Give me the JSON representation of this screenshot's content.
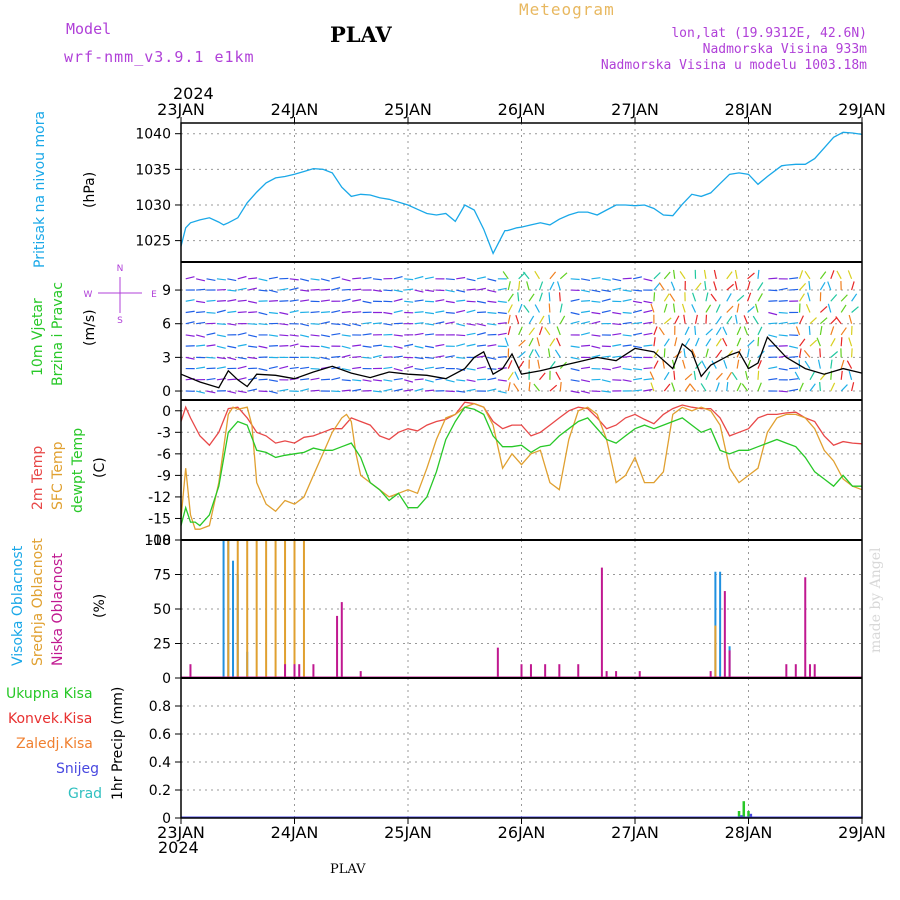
{
  "header": {
    "model_label": "Model",
    "model_name": "wrf-nmm_v3.9.1 e1km",
    "station": "PLAV",
    "title": "Meteogram",
    "lonlat": "lon,lat (19.9312E, 42.6N)",
    "elevation": "Nadmorska Visina 933m",
    "elevation_model": "Nadmorska Visina u modelu 1003.18m"
  },
  "footer": {
    "station": "PLAV",
    "credit": "made by Angel"
  },
  "year": "2024",
  "colors": {
    "pressure": "#1aa8e8",
    "temp2m": "#e84848",
    "sfc": "#e0a030",
    "dew": "#28c828",
    "high": "#2090e0",
    "mid": "#e0a030",
    "low": "#c01890",
    "total": "#28c828",
    "conv": "#e83030",
    "freezing": "#f08030",
    "snow": "#4848e0",
    "hail": "#30c0c0"
  },
  "chart_data": [
    {
      "type": "line",
      "panel": "pressure",
      "x_tick_labels": [
        "23JAN",
        "24JAN",
        "25JAN",
        "26JAN",
        "27JAN",
        "28JAN",
        "29JAN"
      ],
      "x_range_hours": [
        0,
        144
      ],
      "ylabel": [
        "Pritisak na nivou mora",
        "(hPa)"
      ],
      "ylim": [
        1022,
        1041.5
      ],
      "y_ticks": [
        1025,
        1030,
        1035,
        1040
      ],
      "grid": true,
      "series": [
        {
          "name": "Pritisak na nivou mora",
          "color": "#1aa8e8",
          "x": [
            0,
            1,
            2,
            4,
            6,
            8,
            9,
            10,
            12,
            14,
            16,
            18,
            20,
            22,
            24,
            26,
            28,
            30,
            32,
            34,
            36,
            38,
            40,
            42,
            44,
            46,
            48,
            50,
            52,
            54,
            56,
            58,
            60,
            62,
            64,
            66,
            68,
            68.5,
            69,
            70,
            71,
            72,
            74,
            76,
            78,
            80,
            82,
            84,
            86,
            88,
            90,
            92,
            94,
            96,
            98,
            100,
            102,
            104,
            106,
            108,
            110,
            112,
            114,
            116,
            118,
            120,
            122,
            124,
            126,
            127,
            128,
            130,
            132,
            134,
            136,
            138,
            140,
            142,
            144
          ],
          "y": [
            1024.2,
            1026.8,
            1027.5,
            1027.9,
            1028.2,
            1027.6,
            1027.2,
            1027.5,
            1028.2,
            1030.3,
            1031.8,
            1033.1,
            1033.8,
            1034.0,
            1034.3,
            1034.7,
            1035.1,
            1035.0,
            1034.5,
            1032.5,
            1031.2,
            1031.5,
            1031.4,
            1031.0,
            1030.8,
            1030.4,
            1030.0,
            1029.4,
            1028.8,
            1028.6,
            1028.8,
            1027.7,
            1030.0,
            1029.3,
            1026.6,
            1023.2,
            1025.8,
            1026.4,
            1026.4,
            1026.6,
            1026.8,
            1026.9,
            1027.2,
            1027.5,
            1027.2,
            1028.0,
            1028.6,
            1029.0,
            1029.0,
            1028.6,
            1029.3,
            1030.0,
            1030.0,
            1029.9,
            1030.0,
            1029.5,
            1028.6,
            1028.5,
            1030.1,
            1031.5,
            1031.2,
            1031.7,
            1033.0,
            1034.3,
            1034.5,
            1034.3,
            1032.9,
            1034.0,
            1035.0,
            1035.5,
            1035.6,
            1035.7,
            1035.7,
            1036.5,
            1038.0,
            1039.5,
            1040.2,
            1040.1,
            1039.9
          ]
        }
      ]
    },
    {
      "type": "line",
      "panel": "wind",
      "ylabel": [
        "10m Vjetar",
        "Brzina i Pravac",
        "(m/s)"
      ],
      "compass": {
        "n": "N",
        "e": "E",
        "s": "S",
        "w": "W"
      },
      "ylim": [
        -0.8,
        11.5
      ],
      "y_ticks": [
        0,
        3,
        6,
        9
      ],
      "grid": true,
      "series": [
        {
          "name": "10m Vjetar",
          "color": "#000000",
          "x": [
            0,
            4,
            8,
            10,
            12,
            14,
            16,
            20,
            24,
            28,
            32,
            36,
            40,
            44,
            48,
            52,
            56,
            60,
            62,
            64,
            66,
            68,
            70,
            72,
            76,
            80,
            84,
            88,
            92,
            96,
            100,
            104,
            106,
            108,
            110,
            112,
            116,
            118,
            120,
            122,
            124,
            128,
            132,
            136,
            140,
            144
          ],
          "y": [
            1.5,
            0.8,
            0.3,
            1.8,
            1.0,
            0.4,
            1.5,
            1.4,
            1.1,
            1.7,
            2.2,
            1.6,
            1.2,
            1.7,
            1.5,
            1.4,
            1.1,
            2.0,
            3.0,
            3.5,
            1.5,
            2.0,
            3.3,
            1.5,
            1.8,
            2.2,
            2.6,
            3.0,
            2.7,
            3.8,
            3.5,
            2.0,
            4.2,
            3.5,
            1.3,
            2.3,
            3.2,
            3.5,
            2.0,
            2.5,
            4.8,
            3.0,
            2.0,
            1.5,
            2.0,
            1.6
          ]
        }
      ],
      "wind_colors": [
        "#8820d8",
        "#2060e8",
        "#20b0e8",
        "#20c8a0",
        "#60d020",
        "#d8d020",
        "#f08020",
        "#e82828"
      ]
    },
    {
      "type": "line",
      "panel": "temperature",
      "ylabel": [
        "2m Temp",
        "SFC Temp",
        "dewpt Temp",
        "(C)"
      ],
      "ylim": [
        -18,
        1.5
      ],
      "y_ticks": [
        0,
        -3,
        -6,
        -9,
        -12,
        -15,
        -18
      ],
      "grid": true,
      "series": [
        {
          "name": "2m Temp",
          "color": "#e84848",
          "x": [
            0,
            1,
            2,
            4,
            6,
            8,
            10,
            12,
            14,
            16,
            18,
            20,
            22,
            24,
            26,
            28,
            30,
            32,
            34,
            36,
            38,
            40,
            42,
            44,
            46,
            48,
            50,
            52,
            54,
            56,
            58,
            60,
            62,
            64,
            66,
            68,
            70,
            72,
            74,
            76,
            78,
            80,
            82,
            84,
            86,
            88,
            90,
            92,
            94,
            96,
            98,
            100,
            102,
            104,
            106,
            108,
            110,
            112,
            114,
            116,
            118,
            120,
            122,
            124,
            126,
            128,
            130,
            132,
            134,
            136,
            138,
            140,
            142,
            144
          ],
          "y": [
            -1.5,
            0.5,
            -1.0,
            -3.5,
            -4.8,
            -3.0,
            0.3,
            0.5,
            -1.0,
            -3.0,
            -3.5,
            -4.5,
            -4.2,
            -4.5,
            -3.7,
            -3.5,
            -3.0,
            -2.5,
            -2.5,
            -1.0,
            -1.5,
            -2.0,
            -3.5,
            -4.0,
            -3.0,
            -2.5,
            -2.8,
            -2.0,
            -1.5,
            -1.2,
            -0.5,
            1.2,
            1.0,
            0.5,
            -1.5,
            -2.5,
            -2.0,
            -2.0,
            -3.5,
            -3.0,
            -2.0,
            -1.0,
            0.0,
            0.5,
            0.3,
            -1.0,
            -2.5,
            -2.0,
            -1.0,
            -0.5,
            -1.2,
            -1.8,
            -0.5,
            0.3,
            0.8,
            0.5,
            0.3,
            0.3,
            -1.0,
            -3.5,
            -3.0,
            -2.5,
            -1.0,
            -0.5,
            -0.5,
            -0.3,
            -0.2,
            -1.0,
            -1.5,
            -3.5,
            -4.8,
            -4.3,
            -4.5,
            -4.6
          ]
        },
        {
          "name": "SFC Temp",
          "color": "#e0a030",
          "x": [
            0,
            1,
            2,
            3,
            4,
            6,
            8,
            10,
            11,
            12,
            14,
            15,
            16,
            18,
            20,
            22,
            24,
            26,
            28,
            30,
            32,
            34,
            35,
            36,
            37,
            38,
            40,
            42,
            44,
            46,
            48,
            50,
            52,
            54,
            56,
            58,
            60,
            62,
            64,
            66,
            68,
            70,
            72,
            74,
            76,
            78,
            80,
            82,
            84,
            86,
            88,
            90,
            92,
            94,
            96,
            98,
            100,
            102,
            104,
            106,
            108,
            110,
            112,
            114,
            116,
            118,
            120,
            122,
            124,
            126,
            128,
            130,
            132,
            134,
            136,
            138,
            140,
            142,
            144
          ],
          "y": [
            -15.0,
            -8.0,
            -14.5,
            -16.5,
            -16.5,
            -16.0,
            -10.0,
            -0.5,
            0.5,
            0.2,
            0.5,
            -2.0,
            -10.0,
            -13.0,
            -14.0,
            -12.5,
            -13.0,
            -12.0,
            -9.0,
            -6.0,
            -3.0,
            -1.0,
            -0.5,
            -1.5,
            -6.0,
            -9.0,
            -10.0,
            -11.0,
            -12.0,
            -11.5,
            -11.0,
            -11.5,
            -8.0,
            -4.0,
            -1.0,
            -0.5,
            0.5,
            1.0,
            0.5,
            -2.0,
            -8.0,
            -6.0,
            -7.5,
            -6.0,
            -5.5,
            -10.0,
            -11.0,
            -4.0,
            0.0,
            0.5,
            -0.5,
            -4.0,
            -10.0,
            -9.0,
            -6.5,
            -10.0,
            -10.0,
            -8.5,
            -0.5,
            0.5,
            0.0,
            0.5,
            0.0,
            -2.0,
            -8.0,
            -10.0,
            -9.0,
            -8.0,
            -3.0,
            -1.0,
            -0.5,
            -0.5,
            -1.0,
            -2.5,
            -5.5,
            -7.0,
            -9.5,
            -10.5,
            -11.0
          ]
        },
        {
          "name": "dewpt Temp",
          "color": "#28c828",
          "x": [
            0,
            1,
            2,
            3,
            4,
            6,
            8,
            10,
            12,
            14,
            16,
            18,
            20,
            22,
            24,
            26,
            28,
            30,
            32,
            34,
            36,
            38,
            40,
            42,
            44,
            46,
            48,
            50,
            52,
            54,
            56,
            58,
            60,
            62,
            64,
            66,
            68,
            70,
            72,
            74,
            76,
            78,
            80,
            82,
            84,
            86,
            88,
            90,
            92,
            94,
            96,
            98,
            100,
            102,
            104,
            106,
            108,
            110,
            112,
            114,
            116,
            118,
            120,
            122,
            124,
            126,
            128,
            130,
            132,
            134,
            136,
            138,
            140,
            142,
            144
          ],
          "y": [
            -16.0,
            -13.5,
            -15.5,
            -15.5,
            -16.0,
            -14.5,
            -10.5,
            -3.0,
            -1.5,
            -2.0,
            -5.5,
            -5.8,
            -6.5,
            -6.2,
            -6.0,
            -5.8,
            -5.2,
            -5.5,
            -5.5,
            -5.0,
            -4.5,
            -6.5,
            -10.0,
            -11.0,
            -12.5,
            -11.5,
            -13.5,
            -13.5,
            -12.0,
            -8.5,
            -4.0,
            -1.5,
            0.5,
            0.2,
            -0.5,
            -3.5,
            -5.0,
            -5.0,
            -4.8,
            -5.8,
            -5.0,
            -4.8,
            -3.5,
            -2.5,
            -1.5,
            -1.0,
            -2.5,
            -4.0,
            -4.5,
            -3.5,
            -2.5,
            -2.0,
            -2.5,
            -2.0,
            -1.5,
            -1.0,
            -2.0,
            -3.0,
            -2.5,
            -5.5,
            -6.0,
            -5.5,
            -5.5,
            -5.0,
            -4.5,
            -4.0,
            -4.5,
            -5.0,
            -6.5,
            -8.5,
            -9.5,
            -10.5,
            -9.0,
            -10.5,
            -10.5
          ]
        }
      ]
    },
    {
      "type": "bar",
      "panel": "clouds",
      "ylabel": [
        "Visoka Oblacnost",
        "Srednja Oblacnost",
        "Niska Oblacnost",
        "(%)"
      ],
      "ylim": [
        0,
        100
      ],
      "y_ticks": [
        0,
        25,
        50,
        75,
        100
      ],
      "grid": true,
      "series": [
        {
          "name": "Visoka Oblacnost",
          "color": "#2090e0",
          "x": [
            9,
            10,
            11,
            12,
            14,
            113,
            114,
            116
          ],
          "y": [
            100,
            100,
            85,
            75,
            19,
            77,
            77,
            23
          ]
        },
        {
          "name": "Srednja Oblacnost",
          "color": "#e0a030",
          "x": [
            10,
            12,
            14,
            16,
            18,
            20,
            22,
            24,
            26,
            113
          ],
          "y": [
            100,
            100,
            100,
            100,
            100,
            100,
            100,
            100,
            100,
            38
          ]
        },
        {
          "name": "Niska Oblacnost",
          "color": "#c01890",
          "x": [
            2,
            22,
            24,
            25,
            28,
            33,
            34,
            38,
            67,
            72,
            74,
            77,
            80,
            84,
            89,
            90,
            92,
            97,
            112,
            115,
            116,
            128,
            130,
            132,
            133,
            134
          ],
          "y": [
            10,
            10,
            10,
            10,
            10,
            45,
            55,
            5,
            22,
            10,
            10,
            10,
            10,
            10,
            80,
            5,
            5,
            5,
            5,
            63,
            20,
            10,
            10,
            73,
            10,
            10
          ]
        }
      ]
    },
    {
      "type": "bar",
      "panel": "precip",
      "ylabel": [
        "1hr Precip (mm)"
      ],
      "legend_labels": [
        "Ukupna Kisa",
        "Konvek.Kisa",
        "Zaledj.Kisa",
        "Snijeg",
        "Grad"
      ],
      "ylim": [
        0,
        1.0
      ],
      "y_ticks": [
        0,
        0.2,
        0.4,
        0.6,
        0.8
      ],
      "y_tick_labels": [
        "0",
        "0.2",
        "0.4",
        "0.6",
        "0.8"
      ],
      "grid": true,
      "series": [
        {
          "name": "Ukupna Kisa",
          "color": "#28c828",
          "x": [
            118,
            119,
            120
          ],
          "y": [
            0.05,
            0.12,
            0.05
          ]
        },
        {
          "name": "Snijeg",
          "color": "#4848e0",
          "x": [
            118.5,
            120.5
          ],
          "y": [
            0.02,
            0.03
          ]
        }
      ]
    }
  ]
}
